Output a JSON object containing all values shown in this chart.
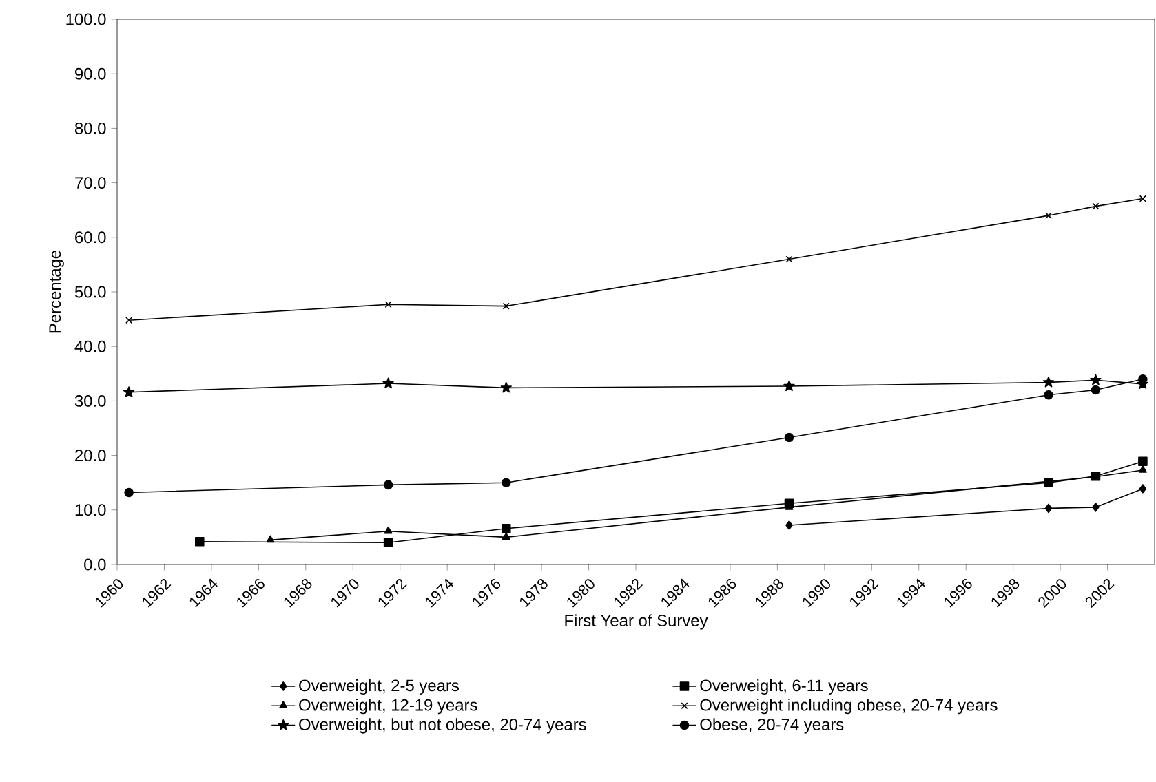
{
  "chart_data": {
    "type": "line",
    "xlabel": "First Year of Survey",
    "ylabel": "Percentage",
    "xlim": [
      1960,
      2004
    ],
    "xticks": [
      1960,
      1962,
      1964,
      1966,
      1968,
      1970,
      1972,
      1974,
      1976,
      1978,
      1980,
      1982,
      1984,
      1986,
      1988,
      1990,
      1992,
      1994,
      1996,
      1998,
      2000,
      2002
    ],
    "ylim": [
      0,
      100
    ],
    "yticks": [
      {
        "value": 0,
        "label": "0.0"
      },
      {
        "value": 10,
        "label": "10.0"
      },
      {
        "value": 20,
        "label": "20.0"
      },
      {
        "value": 30,
        "label": "30.0"
      },
      {
        "value": 40,
        "label": "40.0"
      },
      {
        "value": 50,
        "label": "50.0"
      },
      {
        "value": 60,
        "label": "60.0"
      },
      {
        "value": 70,
        "label": "70.0"
      },
      {
        "value": 80,
        "label": "80.0"
      },
      {
        "value": 90,
        "label": "90.0"
      },
      {
        "value": 100,
        "label": "100.0"
      }
    ],
    "legend": "bottom",
    "grid": false,
    "line_style": "solid",
    "series": [
      {
        "name": "Overweight, 2-5 years",
        "color": "#000000",
        "marker": "diamond",
        "x": [
          1988.5,
          1999.5,
          2001.5,
          2003.5
        ],
        "values": [
          7.2,
          10.3,
          10.5,
          13.9
        ]
      },
      {
        "name": "Overweight, 6-11 years",
        "color": "#000000",
        "marker": "square",
        "x": [
          1963.5,
          1971.5,
          1976.5,
          1988.5,
          1999.5,
          2001.5,
          2003.5
        ],
        "values": [
          4.2,
          4.0,
          6.6,
          11.2,
          15.0,
          16.2,
          18.9
        ]
      },
      {
        "name": "Overweight, 12-19 years",
        "color": "#000000",
        "marker": "triangle",
        "x": [
          1966.5,
          1971.5,
          1976.5,
          1988.5,
          1999.5,
          2001.5,
          2003.5
        ],
        "values": [
          4.5,
          6.1,
          5.0,
          10.5,
          null,
          16.1,
          17.3
        ]
      },
      {
        "name": "Overweight including obese, 20-74 years",
        "color": "#000000",
        "marker": "cross",
        "x": [
          1960.5,
          1971.5,
          1976.5,
          1988.5,
          1999.5,
          2001.5,
          2003.5
        ],
        "values": [
          44.8,
          47.7,
          47.4,
          56.0,
          64.0,
          65.7,
          67.1
        ]
      },
      {
        "name": "Overweight, but not obese, 20-74 years",
        "color": "#000000",
        "marker": "star",
        "x": [
          1960.5,
          1971.5,
          1976.5,
          1988.5,
          1999.5,
          2001.5,
          2003.5
        ],
        "values": [
          31.6,
          33.2,
          32.4,
          32.7,
          33.4,
          33.8,
          33.1
        ]
      },
      {
        "name": "Obese, 20-74 years",
        "color": "#000000",
        "marker": "circle",
        "x": [
          1960.5,
          1971.5,
          1976.5,
          1988.5,
          1999.5,
          2001.5,
          2003.5
        ],
        "values": [
          13.2,
          14.6,
          15.0,
          23.3,
          31.1,
          32.0,
          34.0
        ]
      }
    ]
  }
}
